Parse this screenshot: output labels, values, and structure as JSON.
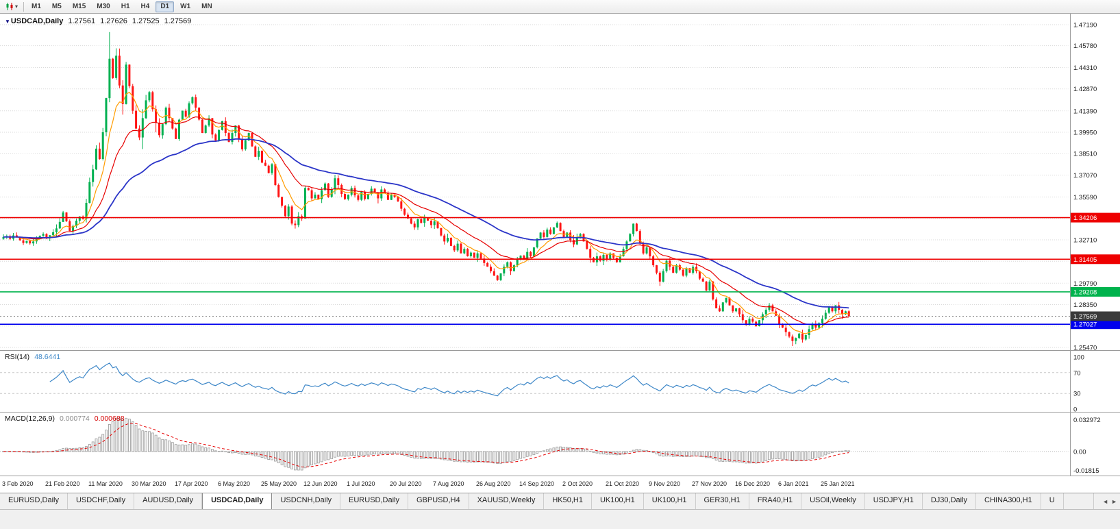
{
  "toolbar": {
    "chart_type_icon": "candlestick-chart",
    "dropdown_caret": "▾",
    "timeframes": [
      "M1",
      "M5",
      "M15",
      "M30",
      "H1",
      "H4",
      "D1",
      "W1",
      "MN"
    ],
    "active_timeframe": "D1"
  },
  "chart": {
    "collapse_icon": "▼",
    "title": {
      "symbol": "USDCAD,Daily",
      "open": "1.27561",
      "high": "1.27626",
      "low": "1.27525",
      "close": "1.27569"
    }
  },
  "price_axis": {
    "levels": [
      1.4719,
      1.4578,
      1.4431,
      1.4287,
      1.4139,
      1.3995,
      1.3851,
      1.3707,
      1.3559,
      1.3415,
      1.3271,
      1.3127,
      1.2979,
      1.2835,
      1.2691,
      1.2547
    ],
    "visible_labels": [
      "1.47190",
      "1.45780",
      "1.44310",
      "1.42870",
      "1.41390",
      "1.39950",
      "1.38510",
      "1.37070",
      "1.35590",
      "1.32710",
      "1.29790",
      "1.28350",
      "1.25470"
    ]
  },
  "hlines": [
    {
      "value": 1.34206,
      "label": "1.34206",
      "color": "#ee0000"
    },
    {
      "value": 1.31405,
      "label": "1.31405",
      "color": "#ee0000"
    },
    {
      "value": 1.29208,
      "label": "1.29208",
      "color": "#00b34d"
    },
    {
      "value": 1.27027,
      "label": "1.27027",
      "color": "#0000ee"
    }
  ],
  "current_price": {
    "value": 1.27569,
    "label": "1.27569",
    "chip_color": "#3a3a3a"
  },
  "chart_data": {
    "type": "candlestick",
    "symbol": "USDCAD",
    "timeframe": "Daily",
    "ylim": [
      1.2547,
      1.4719
    ],
    "x_label_every_bars": 13,
    "x_labels": [
      "3 Feb 2020",
      "21 Feb 2020",
      "11 Mar 2020",
      "30 Mar 2020",
      "17 Apr 2020",
      "6 May 2020",
      "25 May 2020",
      "12 Jun 2020",
      "1 Jul 2020",
      "20 Jul 2020",
      "7 Aug 2020",
      "26 Aug 2020",
      "14 Sep 2020",
      "2 Oct 2020",
      "21 Oct 2020",
      "9 Nov 2020",
      "27 Nov 2020",
      "16 Dec 2020",
      "6 Jan 2021",
      "25 Jan 2021"
    ],
    "closes": [
      1.329,
      1.3296,
      1.3278,
      1.3301,
      1.3288,
      1.3268,
      1.325,
      1.3264,
      1.3247,
      1.326,
      1.328,
      1.3298,
      1.331,
      1.3285,
      1.3302,
      1.3322,
      1.3348,
      1.3392,
      1.3455,
      1.3396,
      1.333,
      1.3364,
      1.34,
      1.3428,
      1.3412,
      1.352,
      1.366,
      1.3745,
      1.3885,
      1.3815,
      1.3995,
      1.4225,
      1.449,
      1.436,
      1.451,
      1.431,
      1.4185,
      1.445,
      1.4305,
      1.414,
      1.402,
      1.396,
      1.409,
      1.421,
      1.4265,
      1.415,
      1.406,
      1.3975,
      1.405,
      1.416,
      1.409,
      1.402,
      1.395,
      1.408,
      1.414,
      1.41,
      1.419,
      1.423,
      1.416,
      1.408,
      1.399,
      1.404,
      1.409,
      1.398,
      1.394,
      1.401,
      1.407,
      1.399,
      1.393,
      1.399,
      1.404,
      1.395,
      1.388,
      1.394,
      1.399,
      1.39,
      1.383,
      1.387,
      1.379,
      1.377,
      1.372,
      1.378,
      1.364,
      1.356,
      1.35,
      1.343,
      1.3495,
      1.338,
      1.337,
      1.343,
      1.3415,
      1.362,
      1.3605,
      1.355,
      1.3575,
      1.3545,
      1.3605,
      1.365,
      1.356,
      1.361,
      1.3685,
      1.364,
      1.358,
      1.3545,
      1.3575,
      1.362,
      1.357,
      1.354,
      1.3595,
      1.3545,
      1.358,
      1.3615,
      1.359,
      1.355,
      1.361,
      1.3585,
      1.354,
      1.3575,
      1.356,
      1.353,
      1.348,
      1.344,
      1.3415,
      1.338,
      1.3355,
      1.341,
      1.3385,
      1.342,
      1.34,
      1.337,
      1.3395,
      1.335,
      1.33,
      1.326,
      1.3285,
      1.323,
      1.32,
      1.3245,
      1.318,
      1.321,
      1.316,
      1.3185,
      1.315,
      1.318,
      1.3145,
      1.3115,
      1.309,
      1.306,
      1.303,
      1.3,
      1.3045,
      1.309,
      1.312,
      1.306,
      1.31,
      1.314,
      1.3165,
      1.314,
      1.319,
      1.316,
      1.322,
      1.328,
      1.332,
      1.329,
      1.334,
      1.331,
      1.3355,
      1.3385,
      1.333,
      1.329,
      1.332,
      1.327,
      1.324,
      1.329,
      1.331,
      1.326,
      1.321,
      1.315,
      1.312,
      1.316,
      1.313,
      1.317,
      1.314,
      1.318,
      1.315,
      1.312,
      1.316,
      1.321,
      1.326,
      1.331,
      1.338,
      1.333,
      1.325,
      1.318,
      1.322,
      1.316,
      1.31,
      1.305,
      1.299,
      1.306,
      1.313,
      1.309,
      1.305,
      1.31,
      1.307,
      1.303,
      1.308,
      1.305,
      1.309,
      1.306,
      1.301,
      1.299,
      1.293,
      1.299,
      1.287,
      1.281,
      1.279,
      1.285,
      1.288,
      1.283,
      1.279,
      1.281,
      1.277,
      1.273,
      1.27,
      1.274,
      1.272,
      1.269,
      1.273,
      1.277,
      1.28,
      1.283,
      1.279,
      1.276,
      1.27,
      1.268,
      1.265,
      1.262,
      1.259,
      1.261,
      1.264,
      1.26,
      1.263,
      1.267,
      1.27,
      1.268,
      1.271,
      1.274,
      1.278,
      1.282,
      1.279,
      1.283,
      1.28,
      1.277,
      1.279,
      1.2757
    ],
    "wick_overrides": [
      {
        "index": 32,
        "high": 1.4669
      },
      {
        "index": 34,
        "high": 1.456
      },
      {
        "index": 238,
        "low": 1.2556
      }
    ],
    "colors": {
      "up": "#00b050",
      "down": "#ff1414"
    },
    "moving_averages": [
      {
        "period": 8,
        "color": "#ff9c00"
      },
      {
        "period": 20,
        "color": "#e60000"
      },
      {
        "period": 50,
        "color": "#2b35c8"
      }
    ]
  },
  "rsi_panel": {
    "name": "RSI(14)",
    "value": "48.6441",
    "period": 14,
    "axis_labels": [
      "100",
      "70",
      "30",
      "0"
    ],
    "levels": [
      70,
      30
    ],
    "line_color": "#3d87c8"
  },
  "macd_panel": {
    "name": "MACD(12,26,9)",
    "main_value": "0.000774",
    "signal_value": "0.000688",
    "params": [
      12,
      26,
      9
    ],
    "axis_top": "0.032972",
    "axis_zero": "0.00",
    "axis_bottom": "-0.01815",
    "hist_color": "#9a9a9a",
    "signal_color": "#e60000"
  },
  "bottom_tabs": {
    "active_index": 3,
    "scroll_left": "◄",
    "scroll_right": "►",
    "tabs": [
      {
        "label": "EURUSD,Daily"
      },
      {
        "label": "USDCHF,Daily"
      },
      {
        "label": "AUDUSD,Daily"
      },
      {
        "label": "USDCAD,Daily"
      },
      {
        "label": "USDCNH,Daily"
      },
      {
        "label": "EURUSD,Daily"
      },
      {
        "label": "GBPUSD,H4"
      },
      {
        "label": "XAUUSD,Weekly"
      },
      {
        "label": "HK50,H1"
      },
      {
        "label": "UK100,H1"
      },
      {
        "label": "UK100,H1"
      },
      {
        "label": "GER30,H1"
      },
      {
        "label": "FRA40,H1"
      },
      {
        "label": "USOil,Weekly"
      },
      {
        "label": "USDJPY,H1"
      },
      {
        "label": "DJ30,Daily"
      },
      {
        "label": "CHINA300,H1"
      },
      {
        "label": "U"
      }
    ]
  }
}
